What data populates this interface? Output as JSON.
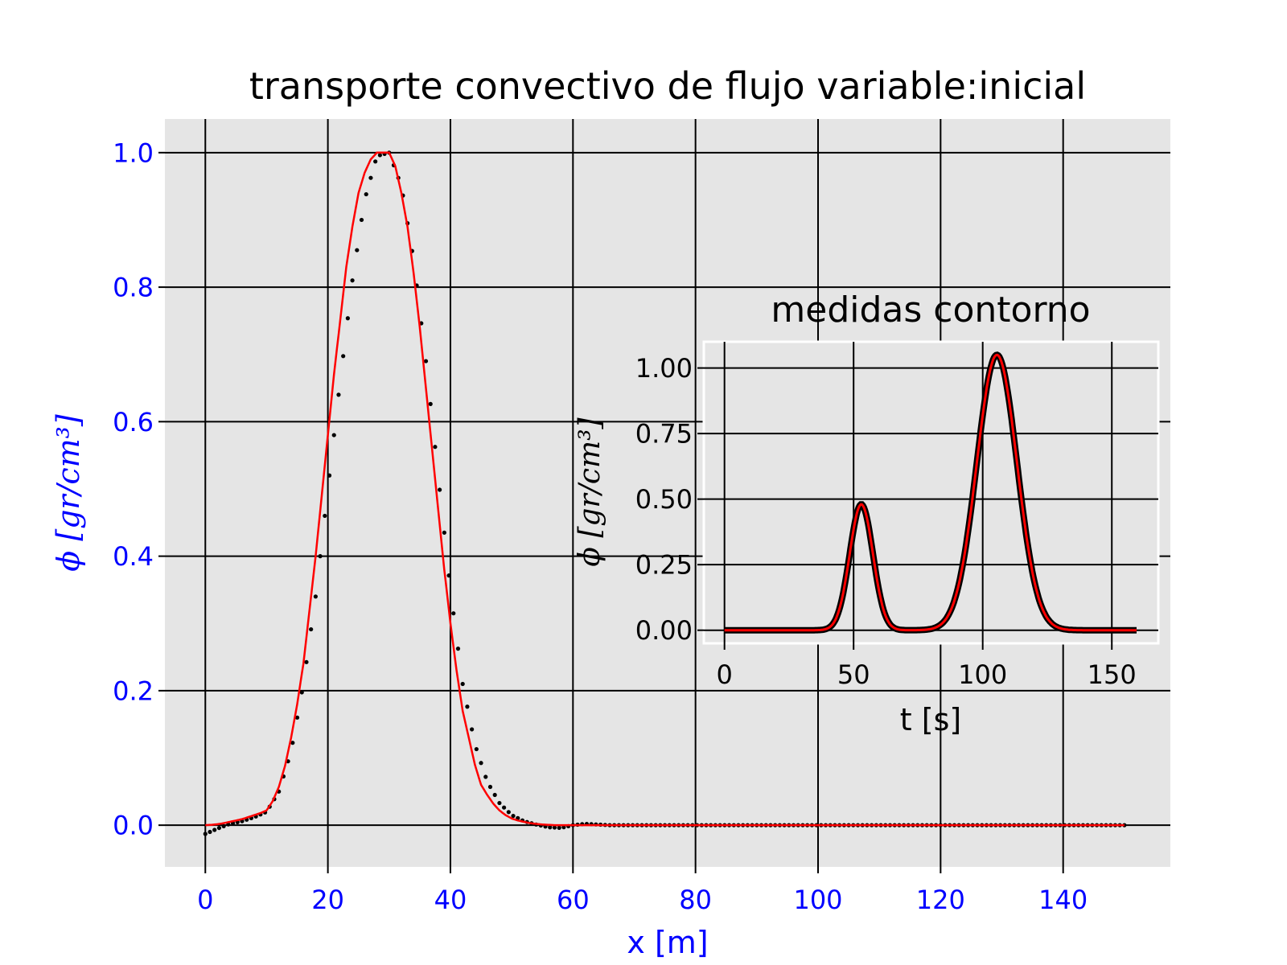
{
  "chart_data": [
    {
      "type": "line",
      "title": "transporte convectivo de flujo variable:inicial",
      "xlabel": "x [m]",
      "ylabel": "ϕ [gr/cm³]",
      "xlim": [
        -6.6,
        157.5
      ],
      "ylim": [
        -0.062,
        1.05
      ],
      "xticks": [
        "0",
        "20",
        "40",
        "60",
        "80",
        "100",
        "120",
        "140"
      ],
      "yticks": [
        "0.0",
        "0.2",
        "0.4",
        "0.6",
        "0.8",
        "1.0"
      ],
      "grid": true,
      "tick_color": "#0000ff",
      "series": [
        {
          "style": "dotted",
          "color": "#000000",
          "x": [
            0,
            2,
            4,
            6,
            8,
            10,
            12,
            14,
            16,
            18,
            20,
            22,
            24,
            26,
            28,
            30,
            32,
            34,
            36,
            38,
            40,
            42,
            44,
            46,
            48,
            50,
            52,
            54,
            56,
            58,
            60,
            62,
            64,
            66,
            68,
            70,
            80,
            100,
            120,
            150
          ],
          "y": [
            -0.013,
            -0.005,
            0.002,
            0.006,
            0.012,
            0.02,
            0.05,
            0.11,
            0.21,
            0.34,
            0.5,
            0.66,
            0.81,
            0.93,
            0.995,
            1.0,
            0.95,
            0.84,
            0.69,
            0.52,
            0.35,
            0.21,
            0.12,
            0.065,
            0.033,
            0.015,
            0.006,
            0.001,
            -0.003,
            -0.004,
            0.0,
            0.002,
            0.001,
            0.0,
            0.0,
            0.0,
            0.0,
            0.0,
            0.0,
            0.0
          ]
        },
        {
          "style": "solid",
          "color": "#ff0000",
          "x": [
            0,
            1,
            2,
            3,
            4,
            5,
            6,
            7,
            8,
            9,
            10,
            11,
            12,
            13,
            14,
            15,
            16,
            17,
            18,
            19,
            20,
            21,
            22,
            23,
            24,
            25,
            26,
            27,
            28,
            29,
            30,
            31,
            32,
            33,
            34,
            35,
            36,
            37,
            38,
            39,
            40,
            41,
            42,
            43,
            44,
            45,
            46,
            47,
            48,
            49,
            50,
            51,
            52,
            53,
            54,
            55,
            56,
            57,
            58,
            59,
            60,
            70,
            80,
            100,
            120,
            150
          ],
          "y": [
            0.0,
            0.0005,
            0.0015,
            0.003,
            0.005,
            0.007,
            0.009,
            0.012,
            0.015,
            0.018,
            0.022,
            0.036,
            0.057,
            0.088,
            0.13,
            0.18,
            0.24,
            0.32,
            0.4,
            0.49,
            0.58,
            0.67,
            0.75,
            0.83,
            0.89,
            0.94,
            0.97,
            0.99,
            1.0,
            1.0,
            1.0,
            0.98,
            0.94,
            0.89,
            0.82,
            0.74,
            0.65,
            0.56,
            0.47,
            0.38,
            0.3,
            0.23,
            0.17,
            0.13,
            0.09,
            0.06,
            0.045,
            0.032,
            0.022,
            0.015,
            0.01,
            0.007,
            0.005,
            0.003,
            0.002,
            0.001,
            0.0005,
            0.0,
            0.0,
            0.0,
            0.0,
            0.0,
            0.0,
            0.0,
            0.0,
            0.0
          ]
        }
      ]
    },
    {
      "type": "line",
      "title": "medidas contorno",
      "xlabel": "t [s]",
      "ylabel": "ϕ [gr/cm³]",
      "xlim": [
        -8,
        168
      ],
      "ylim": [
        -0.05,
        1.1
      ],
      "xticks": [
        "0",
        "50",
        "100",
        "150"
      ],
      "yticks": [
        "0.00",
        "0.25",
        "0.50",
        "0.75",
        "1.00"
      ],
      "grid": true,
      "tick_color": "#000000",
      "series": [
        {
          "style": "thick",
          "color": "#000000",
          "peaks": [
            {
              "center": 53,
              "amplitude": 0.48,
              "sigma": 4.5
            },
            {
              "center": 105.5,
              "amplitude": 1.05,
              "sigma": 7.8
            }
          ],
          "x_range": [
            0,
            160
          ]
        },
        {
          "style": "solid",
          "color": "#ff0000",
          "peaks": [
            {
              "center": 53,
              "amplitude": 0.48,
              "sigma": 4.5
            },
            {
              "center": 105.5,
              "amplitude": 1.05,
              "sigma": 7.8
            }
          ],
          "x_range": [
            0,
            160
          ]
        }
      ]
    }
  ],
  "colors": {
    "axes_bg": "#e5e5e5",
    "grid": "#000000",
    "main_tick_labels": "#0000ff",
    "line_fit": "#ff0000",
    "data_points": "#000000"
  }
}
